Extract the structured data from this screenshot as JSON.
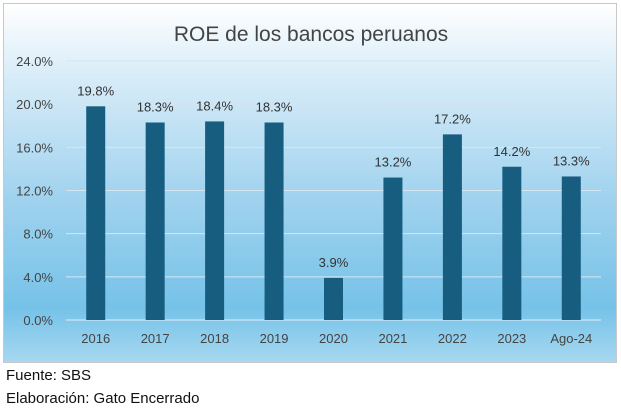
{
  "chart_data": {
    "type": "bar",
    "title": "ROE de los bancos peruanos",
    "categories": [
      "2016",
      "2017",
      "2018",
      "2019",
      "2020",
      "2021",
      "2022",
      "2023",
      "Ago-24"
    ],
    "values": [
      19.8,
      18.3,
      18.4,
      18.3,
      3.9,
      13.2,
      17.2,
      14.2,
      13.3
    ],
    "data_labels": [
      "19.8%",
      "18.3%",
      "18.4%",
      "18.3%",
      "3.9%",
      "13.2%",
      "17.2%",
      "14.2%",
      "13.3%"
    ],
    "yticks": [
      "0.0%",
      "4.0%",
      "8.0%",
      "12.0%",
      "16.0%",
      "20.0%",
      "24.0%"
    ],
    "ylim": [
      0,
      24
    ],
    "grid": true,
    "xlabel": "",
    "ylabel": "",
    "bar_color": "#165d80"
  },
  "footer": {
    "source": "Fuente: SBS",
    "credit": "Elaboración: Gato Encerrado"
  }
}
